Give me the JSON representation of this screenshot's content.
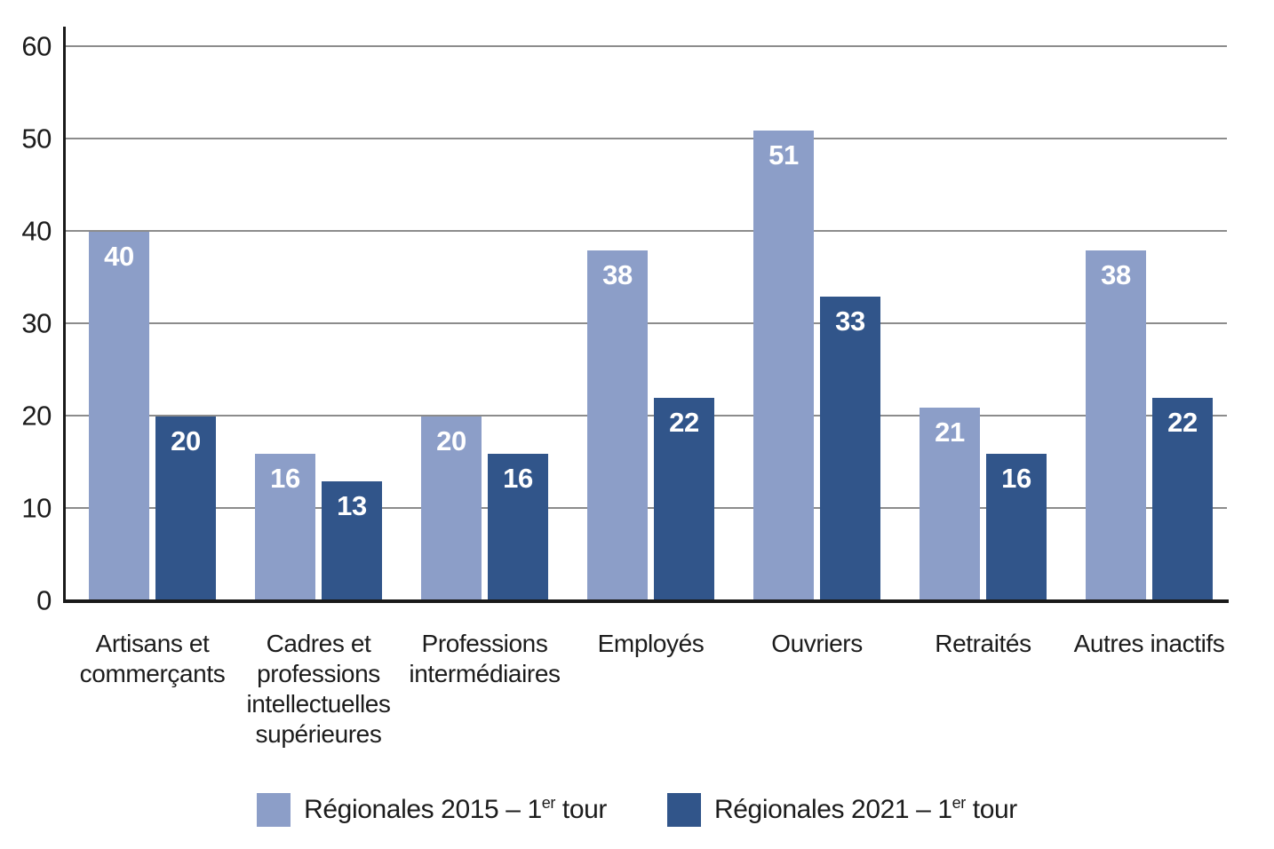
{
  "chart_data": {
    "type": "bar",
    "title": "",
    "xlabel": "",
    "ylabel": "",
    "ylim": [
      0,
      60
    ],
    "yticks": [
      0,
      10,
      20,
      30,
      40,
      50,
      60
    ],
    "grid": true,
    "legend_position": "bottom",
    "value_label_position": "inside-top",
    "categories": [
      "Artisans et commerçants",
      "Cadres et professions intellectuelles supérieures",
      "Professions intermédiaires",
      "Employés",
      "Ouvriers",
      "Retraités",
      "Autres inactifs"
    ],
    "series": [
      {
        "name": "Régionales 2015 – 1er tour",
        "color": "#8C9EC8",
        "values": [
          40,
          16,
          20,
          38,
          51,
          21,
          38
        ]
      },
      {
        "name": "Régionales 2021 – 1er tour",
        "color": "#31558A",
        "values": [
          20,
          13,
          16,
          22,
          33,
          16,
          22
        ]
      }
    ]
  },
  "legend": {
    "items": [
      {
        "prefix": "Régionales 2015 – 1",
        "sup": "er",
        "suffix": " tour",
        "color": "#8C9EC8"
      },
      {
        "prefix": "Régionales 2021 – 1",
        "sup": "er",
        "suffix": " tour",
        "color": "#31558A"
      }
    ]
  },
  "colors": {
    "grid": "#8C8C8C",
    "axis": "#1A1A1A",
    "tick_text": "#1C1C1C",
    "value_text": "#FFFFFF",
    "background": "#FFFFFF"
  }
}
